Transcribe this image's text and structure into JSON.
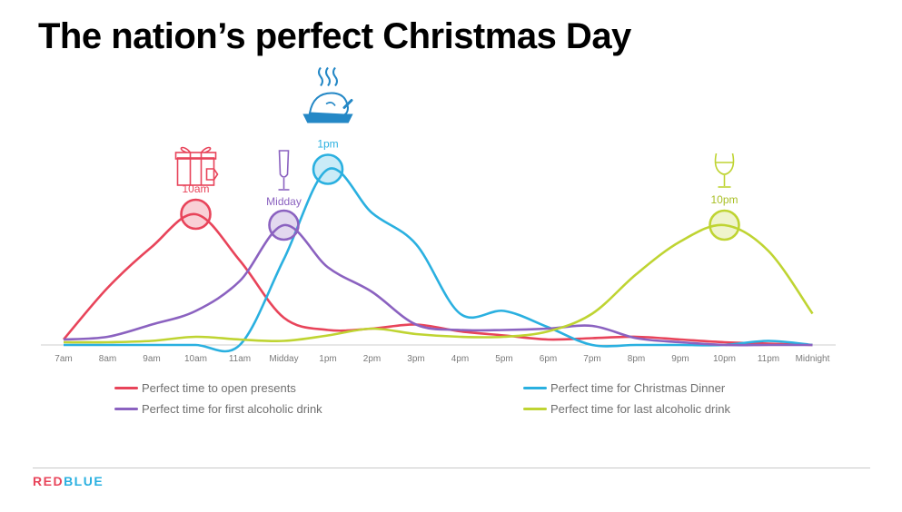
{
  "page": {
    "title": "The nation’s perfect Christmas Day"
  },
  "brand": {
    "part1": "RED",
    "part2": "BLUE",
    "color1": "#e8445a",
    "color2": "#2ab0e0"
  },
  "chart_data": {
    "type": "line",
    "title": "The nation’s perfect Christmas Day",
    "xlabel": "",
    "ylabel": "",
    "categories": [
      "7am",
      "8am",
      "9am",
      "10am",
      "11am",
      "Midday",
      "1pm",
      "2pm",
      "3pm",
      "4pm",
      "5pm",
      "6pm",
      "7pm",
      "8pm",
      "9pm",
      "10pm",
      "11pm",
      "Midnight"
    ],
    "ylim": [
      0,
      100
    ],
    "series": [
      {
        "name": "Perfect time to open presents",
        "color": "#e8445a",
        "icon": "gift-icon",
        "peak_label": "10am",
        "peak_index": 3,
        "values": [
          4,
          42,
          72,
          96,
          62,
          20,
          11,
          12,
          15,
          10,
          7,
          4,
          5,
          6,
          4,
          2,
          1,
          0
        ]
      },
      {
        "name": "Perfect time for Christmas Dinner",
        "color": "#2ab0e0",
        "icon": "roast-turkey-icon",
        "peak_label": "1pm",
        "peak_index": 6,
        "values": [
          0,
          0,
          0,
          0,
          0,
          63,
          129,
          97,
          74,
          23,
          25,
          13,
          0,
          0,
          0,
          0,
          3,
          0
        ]
      },
      {
        "name": "Perfect time for first alcoholic drink",
        "color": "#8b62c0",
        "icon": "champagne-glass-icon",
        "peak_label": "Midday",
        "peak_index": 5,
        "values": [
          4,
          6,
          15,
          25,
          47,
          88,
          57,
          39,
          15,
          11,
          11,
          12,
          14,
          5,
          2,
          0,
          0,
          0
        ]
      },
      {
        "name": "Perfect time for last alcoholic drink",
        "color": "#bfd432",
        "icon": "brandy-glass-icon",
        "peak_label": "10pm",
        "peak_index": 15,
        "values": [
          2,
          2,
          3,
          6,
          4,
          3,
          7,
          12,
          8,
          6,
          6,
          10,
          23,
          52,
          76,
          88,
          69,
          23
        ]
      }
    ]
  }
}
